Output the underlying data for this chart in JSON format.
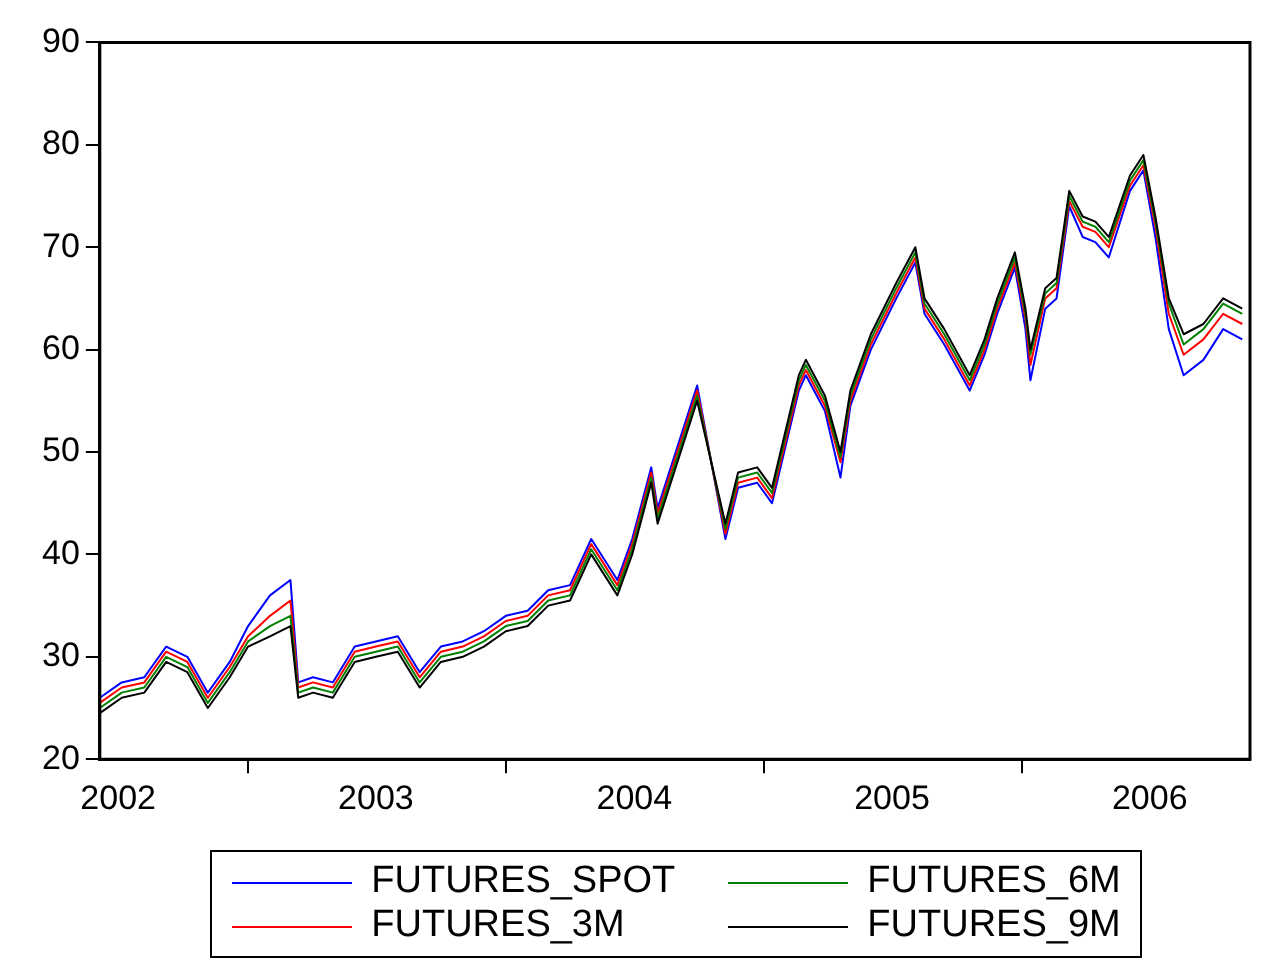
{
  "chart_data": {
    "type": "line",
    "x": [
      "2002-06-05",
      "2002-07-06",
      "2002-08-07",
      "2002-09-07",
      "2002-10-07",
      "2002-11-05",
      "2002-12-06",
      "2003-01-01",
      "2003-02-01",
      "2003-03-02",
      "2003-03-13",
      "2003-04-03",
      "2003-05-01",
      "2003-06-01",
      "2003-07-01",
      "2003-08-01",
      "2003-09-01",
      "2003-10-01",
      "2003-11-01",
      "2003-12-01",
      "2004-01-01",
      "2004-02-01",
      "2004-03-01",
      "2004-04-01",
      "2004-05-01",
      "2004-06-07",
      "2004-06-28",
      "2004-07-25",
      "2004-08-03",
      "2004-09-28",
      "2004-11-07",
      "2004-11-25",
      "2004-12-22",
      "2005-01-12",
      "2005-02-19",
      "2005-03-01",
      "2005-03-28",
      "2005-04-19",
      "2005-05-03",
      "2005-06-01",
      "2005-07-07",
      "2005-08-03",
      "2005-08-16",
      "2005-09-13",
      "2005-10-19",
      "2005-11-09",
      "2005-11-27",
      "2005-12-22",
      "2006-01-06",
      "2006-01-13",
      "2006-02-03",
      "2006-02-19",
      "2006-03-09",
      "2006-03-28",
      "2006-04-15",
      "2006-05-04",
      "2006-06-03",
      "2006-06-22",
      "2006-07-09",
      "2006-07-28",
      "2006-08-18",
      "2006-09-15",
      "2006-10-13",
      "2006-11-09"
    ],
    "series": [
      {
        "name": "FUTURES_SPOT",
        "color": "#0000ff",
        "values": [
          26,
          27.5,
          28,
          31,
          30,
          26.5,
          29.5,
          33,
          36,
          37.5,
          27.5,
          28,
          27.5,
          31,
          31.5,
          32,
          28.5,
          31,
          31.5,
          32.5,
          34,
          34.5,
          36.5,
          37,
          41.5,
          37.5,
          41.5,
          48.5,
          44.5,
          56.5,
          41.5,
          46.5,
          47,
          45,
          56,
          57.5,
          54,
          47.5,
          54.5,
          60,
          65,
          68.5,
          63.5,
          60.5,
          56,
          59.5,
          63.5,
          68,
          62,
          57,
          64,
          65,
          74,
          71,
          70.5,
          69,
          75.5,
          77.5,
          71,
          62,
          57.5,
          59,
          62,
          61
        ]
      },
      {
        "name": "FUTURES_3M",
        "color": "#ff0000",
        "values": [
          25.5,
          27,
          27.5,
          30.5,
          29.5,
          26,
          29,
          32,
          34,
          35.5,
          27,
          27.5,
          27,
          30.5,
          31,
          31.5,
          28,
          30.5,
          31,
          32,
          33.5,
          34,
          36,
          36.5,
          41,
          37,
          41,
          48,
          44,
          56,
          42,
          47,
          47.5,
          45.5,
          56.5,
          58,
          54.5,
          49,
          55,
          60.5,
          65.5,
          69,
          64,
          61,
          56.5,
          60,
          64,
          68.5,
          63,
          58.5,
          65,
          66,
          74.5,
          72,
          71.5,
          70,
          76,
          78,
          72,
          63.5,
          59.5,
          61,
          63.5,
          62.5
        ]
      },
      {
        "name": "FUTURES_6M",
        "color": "#008000",
        "values": [
          25,
          26.5,
          27,
          30,
          29,
          25.5,
          28.5,
          31.5,
          33,
          34,
          26.5,
          27,
          26.5,
          30,
          30.5,
          31,
          27.5,
          30,
          30.5,
          31.5,
          33,
          33.5,
          35.5,
          36,
          40.5,
          36.5,
          40.5,
          47.5,
          43.5,
          55.5,
          42.5,
          47.5,
          48,
          46,
          57,
          58.5,
          55,
          49.5,
          55.5,
          61,
          66,
          69.5,
          64.5,
          61.5,
          57,
          60.5,
          64.5,
          69,
          63.5,
          59.5,
          65.5,
          66.5,
          75,
          72.5,
          72,
          70.5,
          76.5,
          78.5,
          72.5,
          64.5,
          60.5,
          62,
          64.5,
          63.5
        ]
      },
      {
        "name": "FUTURES_9M",
        "color": "#000000",
        "values": [
          24.5,
          26,
          26.5,
          29.5,
          28.5,
          25,
          28,
          31,
          32,
          33,
          26,
          26.5,
          26,
          29.5,
          30,
          30.5,
          27,
          29.5,
          30,
          31,
          32.5,
          33,
          35,
          35.5,
          40,
          36,
          40,
          47,
          43,
          55,
          43,
          48,
          48.5,
          46.5,
          57.5,
          59,
          55.5,
          50,
          56,
          61.5,
          66.5,
          70,
          65,
          62,
          57.5,
          61,
          65,
          69.5,
          64,
          60,
          66,
          67,
          75.5,
          73,
          72.5,
          71,
          77,
          79,
          73,
          65,
          61.5,
          62.5,
          65,
          64
        ]
      }
    ],
    "xlim": [
      "2002-06-05",
      "2006-11-20"
    ],
    "xticks": [
      {
        "value": "2002-07-01",
        "label": "2002"
      },
      {
        "value": "2003-01-01",
        "label": null
      },
      {
        "value": "2003-07-01",
        "label": "2003"
      },
      {
        "value": "2004-01-01",
        "label": null
      },
      {
        "value": "2004-07-01",
        "label": "2004"
      },
      {
        "value": "2005-01-01",
        "label": null
      },
      {
        "value": "2005-07-01",
        "label": "2005"
      },
      {
        "value": "2006-01-01",
        "label": null
      },
      {
        "value": "2006-07-01",
        "label": "2006"
      }
    ],
    "ylim": [
      20,
      90
    ],
    "yticks": [
      20,
      30,
      40,
      50,
      60,
      70,
      80,
      90
    ],
    "grid": false,
    "legend": "bottom",
    "line_style": "solid",
    "marker": "none"
  }
}
